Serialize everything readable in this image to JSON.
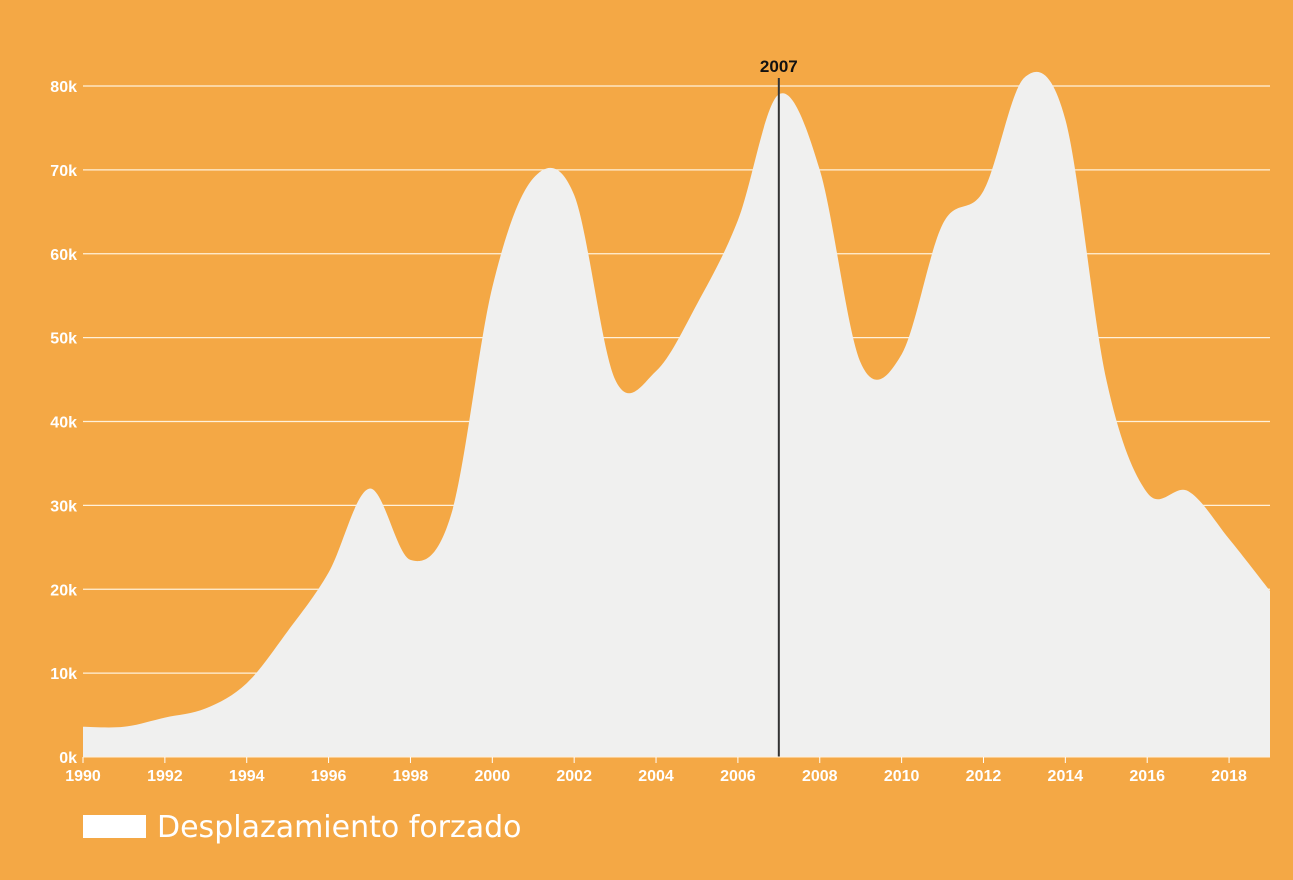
{
  "colors": {
    "background": "#F4A845",
    "area_fill": "#F0F0EF",
    "gridline": "#FFF1DA",
    "tick_text": "#FFFFFF",
    "marker_line": "#333333",
    "marker_text": "#111111"
  },
  "chart_data": {
    "type": "area",
    "title": "",
    "xlabel": "",
    "ylabel": "",
    "xlim": [
      1990,
      2019
    ],
    "ylim": [
      0,
      80000
    ],
    "grid": true,
    "legend_position": "bottom-left",
    "x_ticks": [
      1990,
      1992,
      1994,
      1996,
      1998,
      2000,
      2002,
      2004,
      2006,
      2008,
      2010,
      2012,
      2014,
      2016,
      2018
    ],
    "x_tick_labels": [
      "1990",
      "1992",
      "1994",
      "1996",
      "1998",
      "2000",
      "2002",
      "2004",
      "2006",
      "2008",
      "2010",
      "2012",
      "2014",
      "2016",
      "2018"
    ],
    "y_ticks": [
      0,
      10000,
      20000,
      30000,
      40000,
      50000,
      60000,
      70000,
      80000
    ],
    "y_tick_labels": [
      "0k",
      "10k",
      "20k",
      "30k",
      "40k",
      "50k",
      "60k",
      "70k",
      "80k"
    ],
    "series": [
      {
        "name": "Desplazamiento forzado",
        "x": [
          1990,
          1991,
          1992,
          1993,
          1994,
          1995,
          1996,
          1997,
          1998,
          1999,
          2000,
          2001,
          2002,
          2003,
          2004,
          2005,
          2006,
          2007,
          2008,
          2009,
          2010,
          2011,
          2012,
          2013,
          2014,
          2015,
          2016,
          2017,
          2018,
          2019
        ],
        "values": [
          3600,
          3600,
          4700,
          5800,
          8800,
          15000,
          22000,
          32000,
          23500,
          29000,
          56000,
          69000,
          67000,
          45000,
          46000,
          54000,
          64000,
          79000,
          70000,
          47000,
          48000,
          63500,
          67500,
          81000,
          76000,
          45000,
          31500,
          31700,
          26000,
          19800
        ]
      }
    ],
    "marker": {
      "x": 2007,
      "label": "2007"
    }
  }
}
